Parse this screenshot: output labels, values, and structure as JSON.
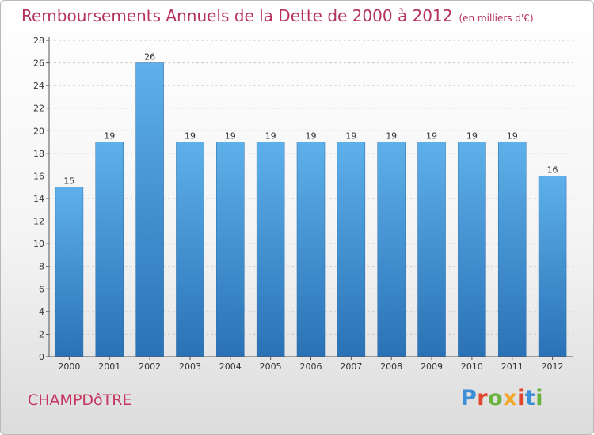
{
  "header": {
    "title": "Remboursements Annuels de la Dette de 2000 à 2012",
    "unit": "(en milliers d'€)"
  },
  "footer": {
    "commune": "CHAMPDôTRE",
    "logo": {
      "text": "Proxiti",
      "letter_colors": [
        "#3a8fd6",
        "#e2462f",
        "#6ab23e",
        "#f1a52a",
        "#e2462f",
        "#3a8fd6",
        "#6ab23e"
      ]
    }
  },
  "colors": {
    "title": "#b5325d",
    "commune": "#c4365f",
    "bar_top": "#5eb0ea",
    "bar_bottom": "#2a72b5",
    "axis": "#555555",
    "grid": "#cccccc"
  },
  "chart_data": {
    "type": "bar",
    "categories": [
      "2000",
      "2001",
      "2002",
      "2003",
      "2004",
      "2005",
      "2006",
      "2007",
      "2008",
      "2009",
      "2010",
      "2011",
      "2012"
    ],
    "values": [
      15,
      19,
      26,
      19,
      19,
      19,
      19,
      19,
      19,
      19,
      19,
      19,
      16
    ],
    "ylim": [
      0,
      28
    ],
    "yticks": [
      0,
      2,
      4,
      6,
      8,
      10,
      12,
      14,
      16,
      18,
      20,
      22,
      24,
      26,
      28
    ],
    "grid": true,
    "data_labels": true
  }
}
